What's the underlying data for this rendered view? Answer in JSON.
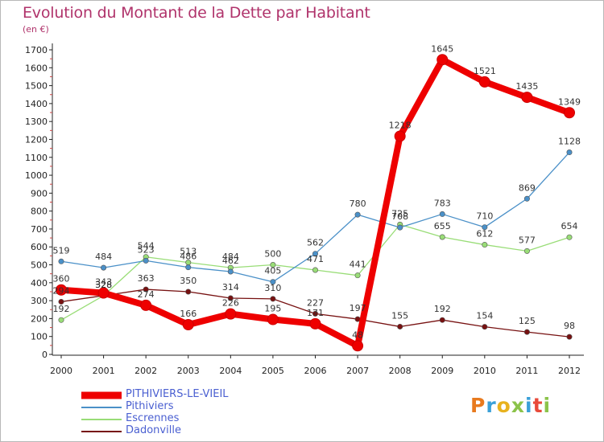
{
  "title": "Evolution du Montant de la Dette par Habitant",
  "unit": "(en €)",
  "logo": {
    "text": "Proxiti",
    "colors": [
      "#e87a1e",
      "#3aa0d8",
      "#e8b21e",
      "#8bc34a",
      "#3aa0d8",
      "#e84a3a",
      "#8bc34a"
    ]
  },
  "chart_data": {
    "type": "line",
    "title": "Evolution du Montant de la Dette par Habitant",
    "ylabel": "(en €)",
    "xlabel": "",
    "x": [
      "2000",
      "2001",
      "2002",
      "2003",
      "2004",
      "2005",
      "2006",
      "2007",
      "2008",
      "2009",
      "2010",
      "2011",
      "2012"
    ],
    "ylim": [
      0,
      1700
    ],
    "yticks": [
      0,
      100,
      200,
      300,
      400,
      500,
      600,
      700,
      800,
      900,
      1000,
      1100,
      1200,
      1300,
      1400,
      1500,
      1600,
      1700
    ],
    "grid": false,
    "legend_position": "bottom-left",
    "series": [
      {
        "name": "PITHIVIERS-LE-VIEIL",
        "color": "#ee0000",
        "values": [
          360,
          343,
          274,
          166,
          226,
          195,
          171,
          48,
          1218,
          1645,
          1521,
          1435,
          1349
        ]
      },
      {
        "name": "Pithiviers",
        "color": "#4a90c8",
        "values": [
          519,
          484,
          523,
          486,
          462,
          405,
          562,
          780,
          708,
          783,
          710,
          869,
          1128
        ]
      },
      {
        "name": "Escrennes",
        "color": "#99dd77",
        "values": [
          192,
          328,
          544,
          513,
          484,
          500,
          471,
          441,
          725,
          655,
          612,
          577,
          654
        ]
      },
      {
        "name": "Dadonville",
        "color": "#771111",
        "values": [
          294,
          328,
          363,
          350,
          314,
          310,
          227,
          197,
          155,
          192,
          154,
          125,
          98
        ]
      }
    ]
  }
}
